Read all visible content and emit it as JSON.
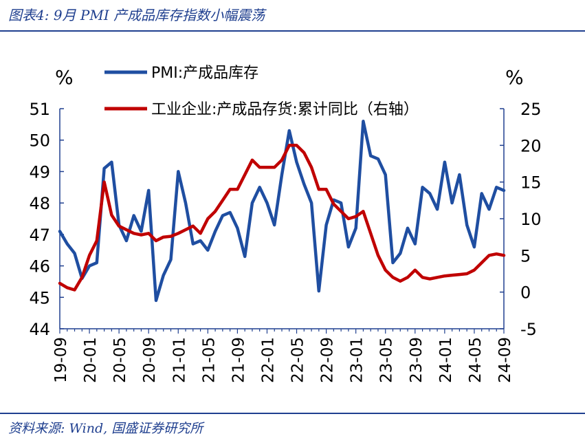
{
  "title": "图表4:  9月 PMI 产成品库存指数小幅震荡",
  "source": "资料来源:  Wind, 国盛证券研究所",
  "chart_data": {
    "type": "line",
    "left_unit": "%",
    "right_unit": "%",
    "legend": [
      "PMI:产成品库存",
      "工业企业:产成品存货:累计同比（右轴）"
    ],
    "colors": {
      "pmi": "#1f4ea1",
      "ind": "#c00000",
      "frame": "#1f3f8f"
    },
    "ylim_left": [
      44,
      51
    ],
    "ylim_right": [
      -5,
      25
    ],
    "yticks_left": [
      "44",
      "45",
      "46",
      "47",
      "48",
      "49",
      "50",
      "51"
    ],
    "yticks_right": [
      "-5",
      "0",
      "5",
      "10",
      "15",
      "20",
      "25"
    ],
    "xtick_labels": [
      "19-09",
      "20-01",
      "20-05",
      "20-09",
      "21-01",
      "21-05",
      "21-09",
      "22-01",
      "22-05",
      "22-09",
      "23-01",
      "23-05",
      "23-09",
      "24-01",
      "24-05",
      "24-09"
    ],
    "x_months": [
      "19-09",
      "19-10",
      "19-11",
      "19-12",
      "20-01",
      "20-02",
      "20-03",
      "20-04",
      "20-05",
      "20-06",
      "20-07",
      "20-08",
      "20-09",
      "20-10",
      "20-11",
      "20-12",
      "21-01",
      "21-02",
      "21-03",
      "21-04",
      "21-05",
      "21-06",
      "21-07",
      "21-08",
      "21-09",
      "21-10",
      "21-11",
      "21-12",
      "22-01",
      "22-02",
      "22-03",
      "22-04",
      "22-05",
      "22-06",
      "22-07",
      "22-08",
      "22-09",
      "22-10",
      "22-11",
      "22-12",
      "23-01",
      "23-02",
      "23-03",
      "23-04",
      "23-05",
      "23-06",
      "23-07",
      "23-08",
      "23-09",
      "23-10",
      "23-11",
      "23-12",
      "24-01",
      "24-02",
      "24-03",
      "24-04",
      "24-05",
      "24-06",
      "24-07",
      "24-08",
      "24-09"
    ],
    "series": [
      {
        "name": "PMI:产成品库存",
        "axis": "left",
        "values": [
          47.1,
          46.7,
          46.4,
          45.6,
          46.0,
          46.1,
          49.1,
          49.3,
          47.3,
          46.8,
          47.6,
          47.1,
          48.4,
          44.9,
          45.7,
          46.2,
          49.0,
          48.0,
          46.7,
          46.8,
          46.5,
          47.1,
          47.6,
          47.7,
          47.2,
          46.3,
          48.0,
          48.5,
          48.0,
          47.3,
          48.9,
          50.3,
          49.3,
          48.6,
          48.0,
          45.2,
          47.3,
          48.1,
          48.0,
          46.6,
          47.2,
          50.6,
          49.5,
          49.4,
          48.9,
          46.1,
          46.4,
          47.2,
          46.7,
          48.5,
          48.3,
          47.8,
          49.3,
          48.0,
          48.9,
          47.3,
          46.6,
          48.3,
          47.8,
          48.5,
          48.4
        ]
      },
      {
        "name": "工业企业:产成品存货:累计同比（右轴）",
        "axis": "right",
        "values": [
          1.2,
          0.6,
          0.3,
          2.0,
          5.0,
          7.0,
          15.0,
          10.5,
          9.0,
          8.5,
          8.0,
          7.8,
          8.0,
          7.0,
          7.5,
          7.6,
          8.0,
          8.5,
          9.0,
          8.0,
          10.0,
          11.0,
          12.5,
          14.0,
          14.0,
          16.0,
          18.0,
          17.0,
          17.0,
          17.0,
          18.0,
          20.0,
          20.0,
          19.0,
          17.0,
          14.0,
          14.0,
          12.0,
          11.0,
          10.0,
          10.3,
          11.0,
          8.0,
          5.0,
          3.0,
          2.0,
          1.5,
          2.0,
          3.0,
          2.0,
          1.8,
          2.0,
          2.2,
          2.3,
          2.4,
          2.5,
          3.0,
          4.0,
          5.0,
          5.2,
          5.0
        ]
      }
    ]
  }
}
